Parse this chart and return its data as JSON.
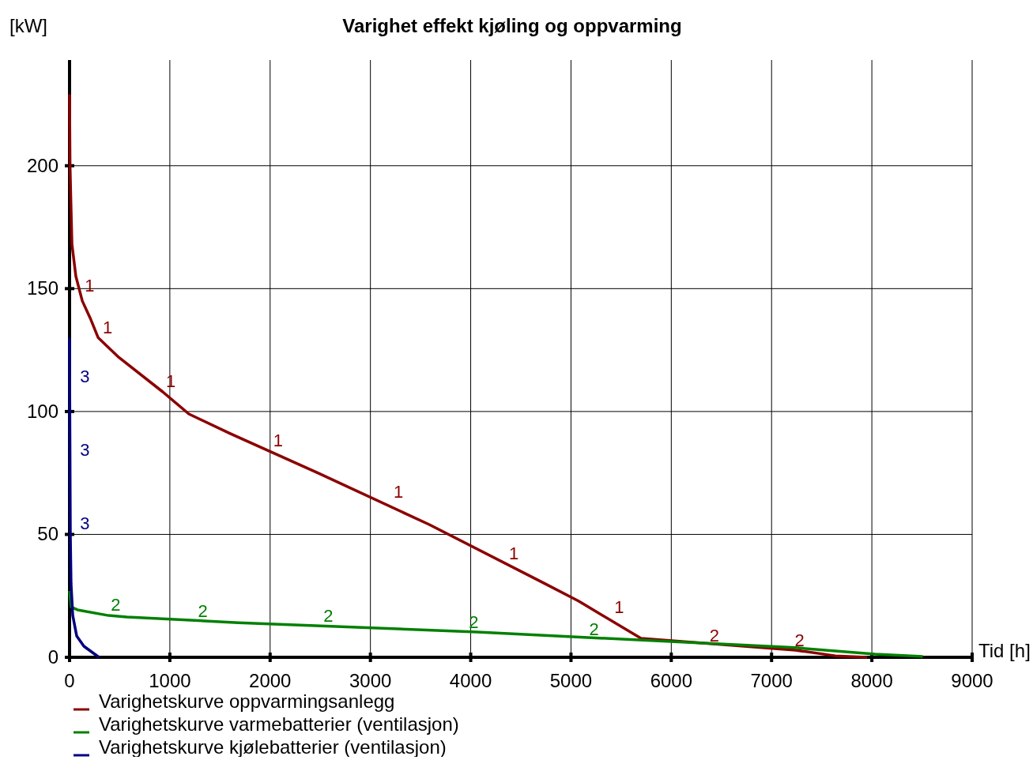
{
  "chart_data": {
    "type": "line",
    "title": "Varighet effekt kjøling og oppvarming",
    "xlabel": "Tid [h]",
    "ylabel": "[kW]",
    "xlim": [
      0,
      9000
    ],
    "ylim": [
      0,
      243
    ],
    "xticks": [
      0,
      1000,
      2000,
      3000,
      4000,
      5000,
      6000,
      7000,
      8000,
      9000
    ],
    "yticks": [
      0,
      50,
      100,
      150,
      200
    ],
    "annotations": [
      {
        "text": "1",
        "x": 120,
        "y": 147
      },
      {
        "text": "1",
        "x": 300,
        "y": 130
      },
      {
        "text": "1",
        "x": 930,
        "y": 108
      },
      {
        "text": "1",
        "x": 2000,
        "y": 84
      },
      {
        "text": "1",
        "x": 3200,
        "y": 63
      },
      {
        "text": "1",
        "x": 4350,
        "y": 38
      },
      {
        "text": "1",
        "x": 5400,
        "y": 16
      },
      {
        "text": "2",
        "x": 380,
        "y": 17
      },
      {
        "text": "2",
        "x": 1250,
        "y": 14.5
      },
      {
        "text": "2",
        "x": 2500,
        "y": 12.5
      },
      {
        "text": "2",
        "x": 3950,
        "y": 10
      },
      {
        "text": "2",
        "x": 5150,
        "y": 7
      },
      {
        "text": "2",
        "x": 6350,
        "y": 4.5
      },
      {
        "text": "2",
        "x": 7200,
        "y": 2.5
      },
      {
        "text": "3",
        "x": 10,
        "y": 110
      },
      {
        "text": "3",
        "x": 10,
        "y": 80
      },
      {
        "text": "3",
        "x": 10,
        "y": 50
      }
    ],
    "grid": true,
    "legend": "bottom",
    "marker": "none",
    "line_style": "solid",
    "series": [
      {
        "name": "Varighetskurve oppvarmingsanlegg",
        "color": "#8b0000",
        "x": [
          0,
          5,
          16,
          24,
          63,
          127,
          206,
          286,
          492,
          929,
          1190,
          1603,
          2476,
          3587,
          4738,
          5071,
          5698,
          7238,
          7635,
          7952
        ],
        "values": [
          229,
          200,
          181,
          168,
          155,
          145,
          138,
          130,
          122,
          108,
          99,
          91,
          75,
          54,
          30,
          23,
          7.7,
          2.9,
          0.6,
          0
        ]
      },
      {
        "name": "Varighetskurve varmebatterier (ventilasjon)",
        "color": "#008000",
        "x": [
          0,
          16,
          79,
          389,
          571,
          1683,
          4063,
          7238,
          8032,
          8508
        ],
        "values": [
          27,
          20.5,
          19.3,
          17,
          16.4,
          14.1,
          10.3,
          3.9,
          1.3,
          0.3
        ]
      },
      {
        "name": "Varighetskurve kjølebatterier (ventilasjon)",
        "color": "#000080",
        "x": [
          0,
          3,
          8,
          15,
          32,
          71,
          143,
          294
        ],
        "values": [
          130,
          97,
          50,
          30,
          17,
          8.7,
          4.5,
          0
        ]
      }
    ]
  }
}
